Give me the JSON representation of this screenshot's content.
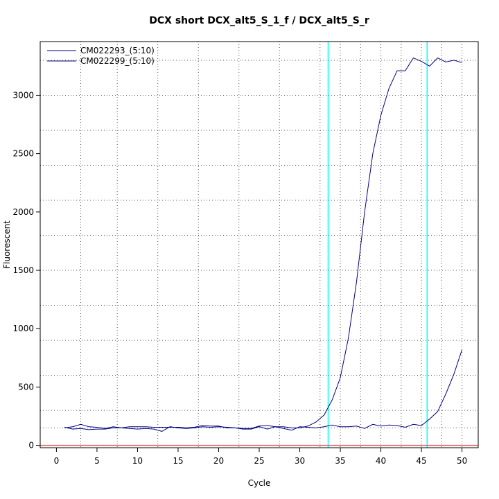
{
  "chart_data": {
    "type": "line",
    "title": "DCX short DCX_alt5_S_1_f / DCX_alt5_S_r",
    "xlabel": "Cycle",
    "ylabel": "Fluorescent",
    "xlim": [
      -2,
      52
    ],
    "ylim": [
      -20,
      3460
    ],
    "x_ticks": [
      0,
      5,
      10,
      15,
      20,
      25,
      30,
      35,
      40,
      45,
      50
    ],
    "y_ticks": [
      0,
      500,
      1000,
      1500,
      2000,
      2500,
      3000
    ],
    "grid": true,
    "grid_x": [
      3,
      7.5,
      12.5,
      17.5,
      22.5,
      27.5,
      32.5,
      35,
      37.5,
      40,
      42.5,
      45,
      47.5,
      50
    ],
    "grid_y": [
      0,
      150,
      300,
      600,
      900,
      1200,
      1500,
      1800,
      2100,
      2400,
      2700,
      3000,
      3300
    ],
    "threshold_lines_x": [
      33.5,
      45.7
    ],
    "baseline_y": 0,
    "legend_position": "top-left",
    "colors": {
      "series": "#00007f",
      "threshold": "#00ffff",
      "baseline": "#e06060",
      "grid": "#555555"
    },
    "x": [
      1,
      2,
      3,
      4,
      5,
      6,
      7,
      8,
      9,
      10,
      11,
      12,
      13,
      14,
      15,
      16,
      17,
      18,
      19,
      20,
      21,
      22,
      23,
      24,
      25,
      26,
      27,
      28,
      29,
      30,
      31,
      32,
      33,
      34,
      35,
      36,
      37,
      38,
      39,
      40,
      41,
      42,
      43,
      44,
      45,
      46,
      47,
      48,
      49,
      50
    ],
    "series": [
      {
        "name": "CM022293_(5:10)",
        "values": [
          150,
          160,
          180,
          160,
          155,
          145,
          160,
          150,
          160,
          160,
          160,
          155,
          155,
          155,
          155,
          150,
          155,
          170,
          165,
          165,
          150,
          150,
          145,
          145,
          165,
          170,
          160,
          160,
          150,
          150,
          165,
          200,
          260,
          390,
          580,
          920,
          1400,
          2000,
          2500,
          2830,
          3060,
          3210,
          3210,
          3320,
          3290,
          3250,
          3320,
          3285,
          3300,
          3280
        ]
      },
      {
        "name": "CM022299_(5:10)",
        "values": [
          155,
          140,
          145,
          135,
          140,
          140,
          150,
          150,
          145,
          140,
          145,
          140,
          120,
          160,
          150,
          145,
          150,
          160,
          155,
          160,
          155,
          150,
          140,
          140,
          160,
          140,
          160,
          145,
          130,
          160,
          155,
          150,
          160,
          175,
          160,
          160,
          165,
          145,
          180,
          165,
          175,
          170,
          155,
          180,
          170,
          225,
          290,
          440,
          610,
          820
        ]
      }
    ]
  }
}
